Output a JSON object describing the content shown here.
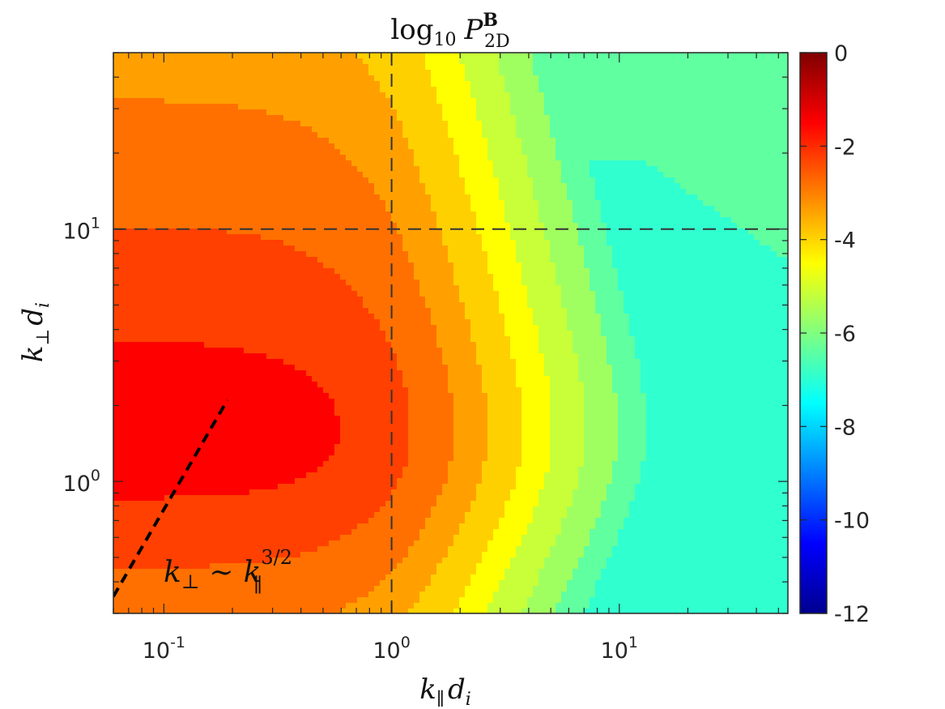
{
  "chart_data": {
    "type": "heatmap",
    "title": {
      "prefix": "log",
      "prefix_sub": "10",
      "symbol": "P",
      "superscript": "B",
      "subscript": "2D"
    },
    "xlabel": {
      "base": "k",
      "base_sub": "∥",
      "second": "d",
      "second_sub": "i"
    },
    "ylabel": {
      "base": "k",
      "base_sub": "⊥",
      "second": "d",
      "second_sub": "i"
    },
    "x_scale": "log",
    "y_scale": "log",
    "xlim": [
      0.06,
      55
    ],
    "ylim": [
      0.3,
      50
    ],
    "x_ticks": [
      {
        "value": 0.1,
        "base": "10",
        "exp": "-1"
      },
      {
        "value": 1,
        "base": "10",
        "exp": "0"
      },
      {
        "value": 10,
        "base": "10",
        "exp": "1"
      }
    ],
    "y_ticks": [
      {
        "value": 1,
        "base": "10",
        "exp": "0"
      },
      {
        "value": 10,
        "base": "10",
        "exp": "1"
      }
    ],
    "colorbar": {
      "range": [
        -12,
        0
      ],
      "colormap": "jet",
      "tick_labels": [
        "0",
        "-2",
        "-4",
        "-6",
        "-8",
        "-10",
        "-12"
      ],
      "tick_values": [
        0,
        -2,
        -4,
        -6,
        -8,
        -10,
        -12
      ]
    },
    "reference_lines": [
      {
        "orientation": "vertical",
        "value": 1,
        "style": "dashed"
      },
      {
        "orientation": "horizontal",
        "value": 10,
        "style": "dashed"
      }
    ],
    "fit_line": {
      "from": [
        0.06,
        0.35
      ],
      "to": [
        0.19,
        2.1
      ],
      "style": "dashed-bold",
      "label": {
        "lhs": "k",
        "lhs_sub": "⊥",
        "rel": "∼",
        "rhs": "k",
        "rhs_sub": "∥",
        "rhs_exp": "3/2"
      }
    },
    "contour_levels": [
      -0.9,
      -1.7,
      -2.6,
      -3.4,
      -4.3,
      -5.1,
      -6.0,
      -6.9,
      -7.7,
      -8.6
    ],
    "contour_colors": [
      "#ff0000",
      "#ff4000",
      "#ff7000",
      "#ffa000",
      "#ffd000",
      "#ffff00",
      "#c8ff38",
      "#a0ff60",
      "#60ffa0",
      "#30ffd0",
      "#00ffff",
      "#00b8ff",
      "#0098ff"
    ]
  }
}
